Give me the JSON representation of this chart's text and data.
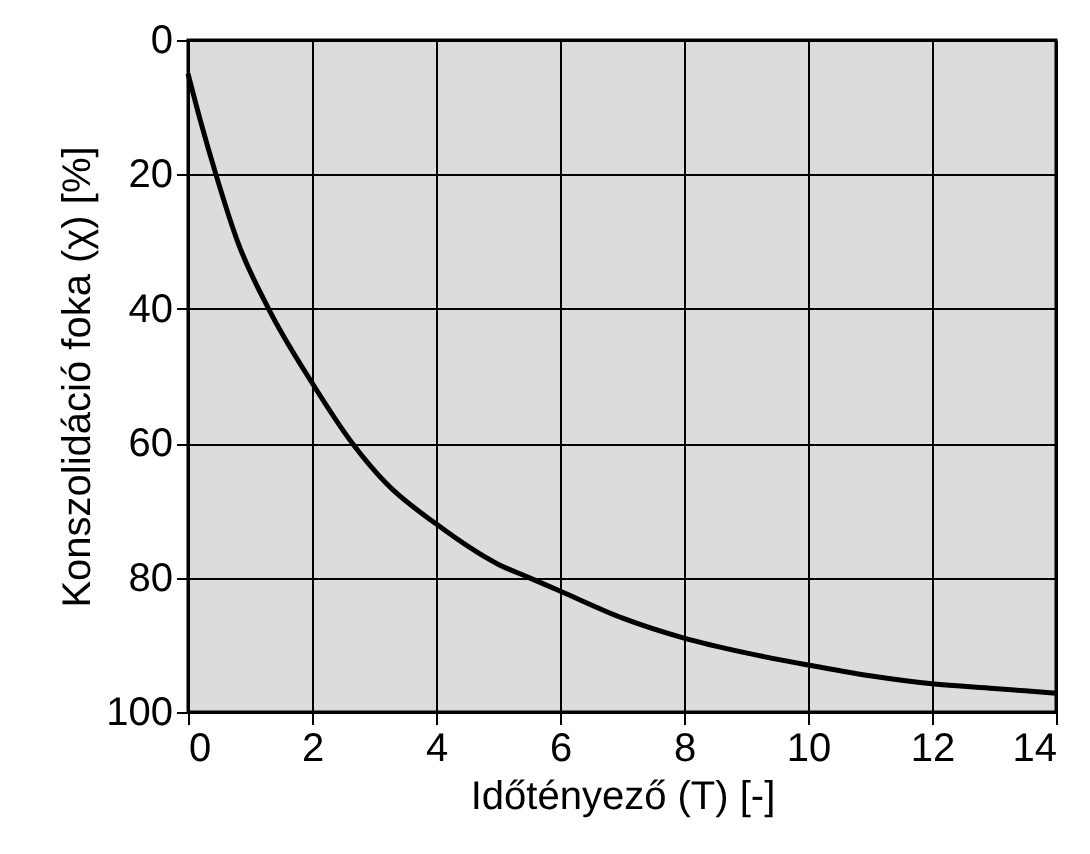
{
  "chart_data": {
    "type": "line",
    "xlabel": "Időtényező (T) [-]",
    "ylabel": "Konszolidáció foka (χ) [%]",
    "x": [
      0,
      0.2,
      0.45,
      0.8,
      1.3,
      2,
      2.65,
      3.2,
      4,
      5,
      5.5,
      6,
      7,
      8,
      9,
      10,
      11,
      12,
      13,
      14
    ],
    "series": [
      {
        "color": "#000000",
        "values": [
          5,
          12,
          20,
          30,
          40,
          51,
          60,
          66,
          72,
          78,
          80,
          82,
          86,
          89,
          91.2,
          93,
          94.6,
          95.8,
          96.5,
          97.2
        ]
      }
    ],
    "xlim": [
      0,
      14
    ],
    "xticks": [
      0,
      2,
      4,
      6,
      8,
      10,
      12,
      14
    ],
    "ylim": [
      100,
      0
    ],
    "yticks": [
      0,
      20,
      40,
      60,
      80,
      100
    ],
    "grid": true,
    "marker": "none",
    "line_style": "solid"
  }
}
